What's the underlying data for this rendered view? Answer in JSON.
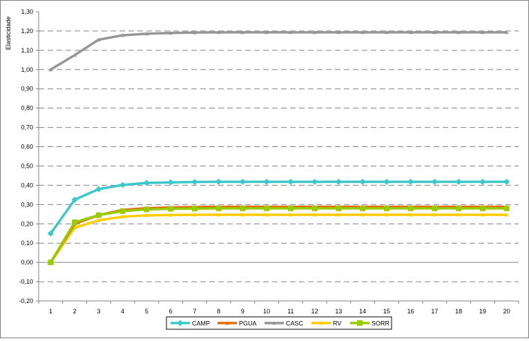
{
  "chart_data": {
    "type": "line",
    "title": "",
    "xlabel": "",
    "ylabel": "Elasticidade",
    "ylim": [
      -0.2,
      1.3
    ],
    "yticks": [
      "-0,20",
      "-0,10",
      "0,00",
      "0,10",
      "0,20",
      "0,30",
      "0,40",
      "0,50",
      "0,60",
      "0,70",
      "0,80",
      "0,90",
      "1,00",
      "1,10",
      "1,20",
      "1,30"
    ],
    "categories": [
      "1",
      "2",
      "3",
      "4",
      "5",
      "6",
      "7",
      "8",
      "9",
      "10",
      "11",
      "12",
      "13",
      "14",
      "15",
      "16",
      "17",
      "18",
      "19",
      "20"
    ],
    "grid": "horizontal dashed",
    "legend": "bottom",
    "series": [
      {
        "name": "CAMP",
        "color": "#3cc8c8",
        "marker": "diamond",
        "values": [
          0.15,
          0.325,
          0.38,
          0.402,
          0.412,
          0.415,
          0.417,
          0.418,
          0.418,
          0.418,
          0.418,
          0.418,
          0.418,
          0.418,
          0.418,
          0.418,
          0.418,
          0.418,
          0.418,
          0.418
        ]
      },
      {
        "name": "PGUA",
        "color": "#e46c0a",
        "marker": "triangle",
        "values": [
          0.0,
          0.2,
          0.245,
          0.272,
          0.281,
          0.285,
          0.287,
          0.288,
          0.288,
          0.288,
          0.288,
          0.288,
          0.288,
          0.288,
          0.288,
          0.288,
          0.288,
          0.288,
          0.288,
          0.288
        ]
      },
      {
        "name": "CASC",
        "color": "#969696",
        "marker": "triangle",
        "values": [
          1.0,
          1.075,
          1.155,
          1.178,
          1.186,
          1.19,
          1.192,
          1.193,
          1.193,
          1.193,
          1.193,
          1.193,
          1.193,
          1.193,
          1.193,
          1.193,
          1.193,
          1.193,
          1.193,
          1.193
        ]
      },
      {
        "name": "RV",
        "color": "#ffcc00",
        "marker": "triangle",
        "values": [
          0.0,
          0.18,
          0.218,
          0.237,
          0.244,
          0.246,
          0.247,
          0.247,
          0.247,
          0.247,
          0.247,
          0.247,
          0.247,
          0.247,
          0.247,
          0.247,
          0.247,
          0.247,
          0.247,
          0.247
        ]
      },
      {
        "name": "SORR",
        "color": "#99cc00",
        "marker": "square",
        "values": [
          0.0,
          0.208,
          0.245,
          0.266,
          0.275,
          0.278,
          0.279,
          0.28,
          0.28,
          0.28,
          0.28,
          0.28,
          0.28,
          0.28,
          0.28,
          0.28,
          0.28,
          0.28,
          0.28,
          0.28
        ]
      }
    ]
  }
}
